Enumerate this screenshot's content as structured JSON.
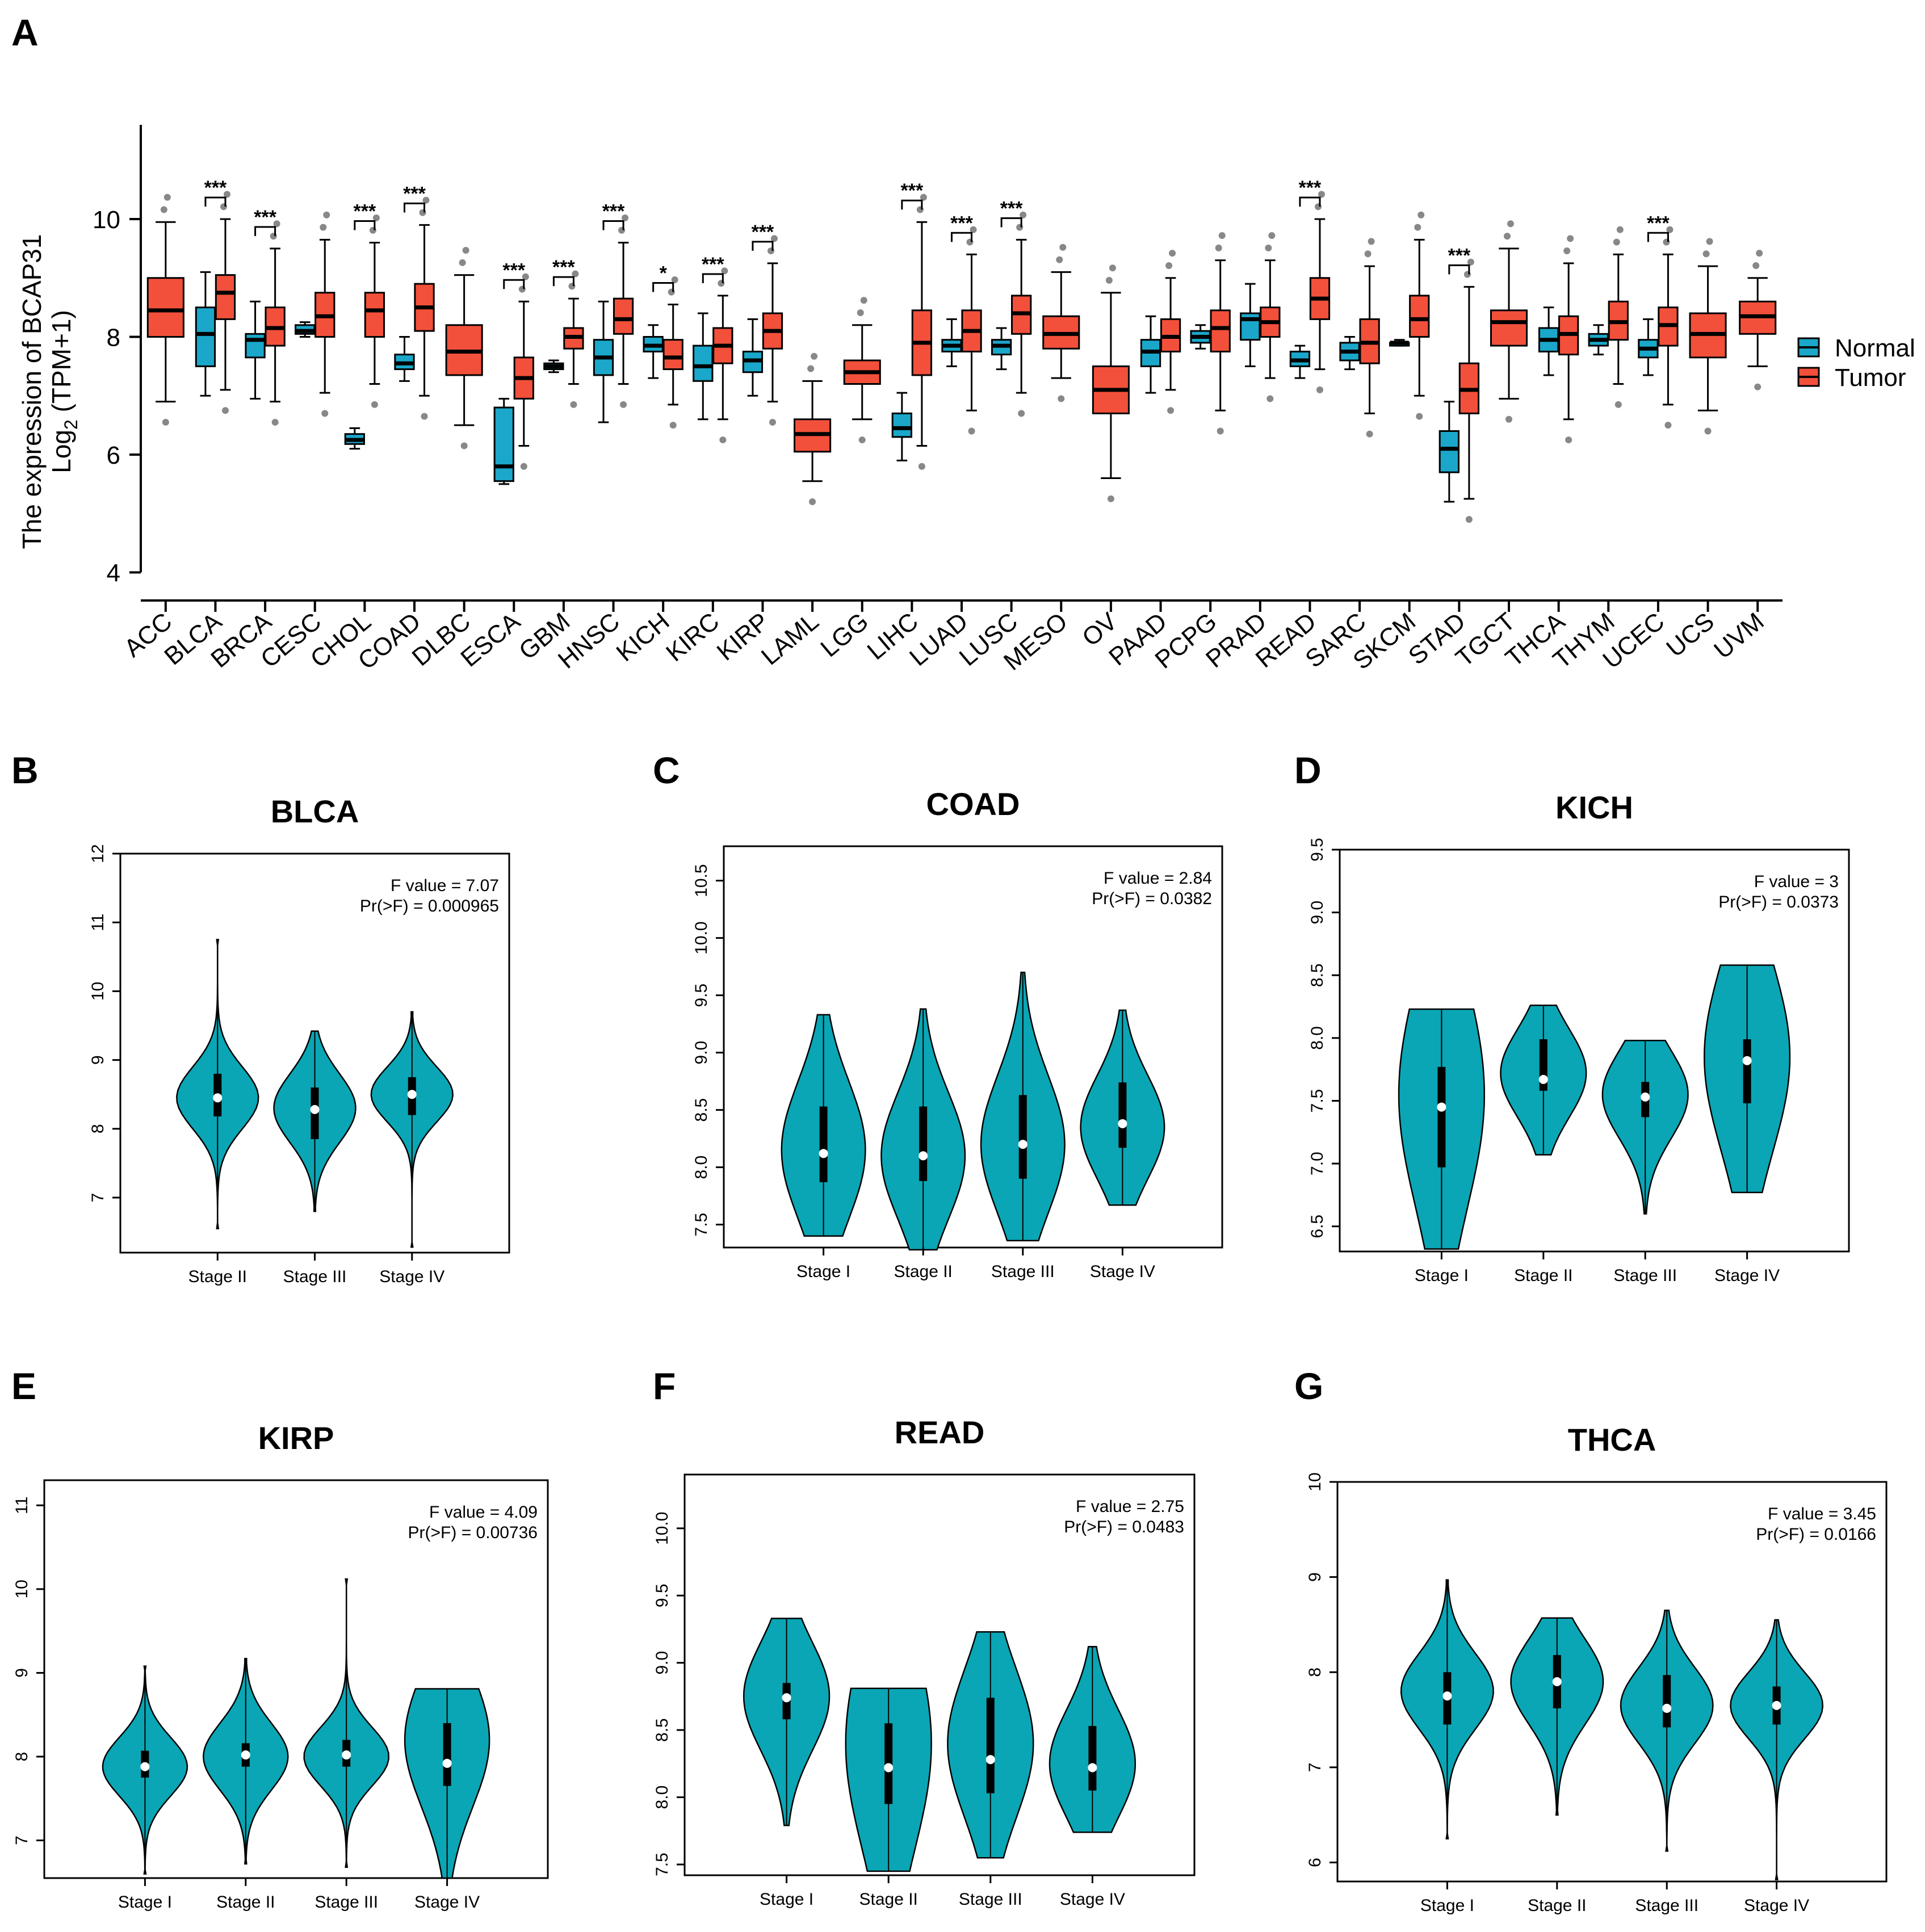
{
  "colors": {
    "normal": "#1aa7c9",
    "tumor": "#f2503a",
    "violin": "#0aa6b5"
  },
  "panel_letters": [
    "A",
    "B",
    "C",
    "D",
    "E",
    "F",
    "G"
  ],
  "chart_data": [
    {
      "panel": "A",
      "type": "box",
      "ylabel_line1": "The expression of BCAP31",
      "ylabel_line2_main": "Log",
      "ylabel_line2_sub": "2",
      "ylabel_line2_rest": " (TPM+1)",
      "ylim": [
        3.6,
        11.6
      ],
      "yticks": [
        4,
        6,
        8,
        10
      ],
      "legend": [
        {
          "name": "Normal",
          "key": "normal"
        },
        {
          "name": "Tumor",
          "key": "tumor"
        }
      ],
      "legend_position": "right",
      "categories": [
        {
          "name": "ACC",
          "tumor": [
            6.9,
            8.0,
            8.45,
            9.0,
            9.95
          ]
        },
        {
          "name": "BLCA",
          "normal": [
            7.0,
            7.5,
            8.05,
            8.5,
            9.1
          ],
          "tumor": [
            7.1,
            8.3,
            8.75,
            9.05,
            10.0
          ],
          "sig": "***"
        },
        {
          "name": "BRCA",
          "normal": [
            6.95,
            7.65,
            7.95,
            8.05,
            8.6
          ],
          "tumor": [
            6.9,
            7.85,
            8.15,
            8.5,
            9.5
          ],
          "sig": "***"
        },
        {
          "name": "CESC",
          "normal": [
            8.0,
            8.05,
            8.1,
            8.2,
            8.25
          ],
          "tumor": [
            7.05,
            8.0,
            8.35,
            8.75,
            9.65
          ]
        },
        {
          "name": "CHOL",
          "normal": [
            6.1,
            6.18,
            6.25,
            6.35,
            6.45
          ],
          "tumor": [
            7.2,
            8.0,
            8.45,
            8.75,
            9.6
          ],
          "sig": "***"
        },
        {
          "name": "COAD",
          "normal": [
            7.25,
            7.45,
            7.55,
            7.7,
            8.0
          ],
          "tumor": [
            7.0,
            8.1,
            8.5,
            8.9,
            9.9
          ],
          "sig": "***"
        },
        {
          "name": "DLBC",
          "tumor": [
            6.5,
            7.35,
            7.75,
            8.2,
            9.05
          ]
        },
        {
          "name": "ESCA",
          "normal": [
            5.5,
            5.55,
            5.8,
            6.8,
            6.95
          ],
          "tumor": [
            6.15,
            6.95,
            7.3,
            7.65,
            8.6
          ],
          "sig": "***"
        },
        {
          "name": "GBM",
          "normal": [
            7.4,
            7.45,
            7.5,
            7.55,
            7.6
          ],
          "tumor": [
            7.2,
            7.8,
            8.0,
            8.15,
            8.65
          ],
          "sig": "***"
        },
        {
          "name": "HNSC",
          "normal": [
            6.55,
            7.35,
            7.65,
            7.95,
            8.6
          ],
          "tumor": [
            7.2,
            8.05,
            8.3,
            8.65,
            9.6
          ],
          "sig": "***"
        },
        {
          "name": "KICH",
          "normal": [
            7.3,
            7.75,
            7.85,
            8.0,
            8.2
          ],
          "tumor": [
            6.85,
            7.45,
            7.65,
            7.95,
            8.55
          ],
          "sig": "*"
        },
        {
          "name": "KIRC",
          "normal": [
            6.6,
            7.25,
            7.5,
            7.85,
            8.4
          ],
          "tumor": [
            6.6,
            7.55,
            7.85,
            8.15,
            8.7
          ],
          "sig": "***"
        },
        {
          "name": "KIRP",
          "normal": [
            7.0,
            7.4,
            7.6,
            7.75,
            8.3
          ],
          "tumor": [
            6.9,
            7.8,
            8.1,
            8.4,
            9.25
          ],
          "sig": "***"
        },
        {
          "name": "LAML",
          "tumor": [
            5.55,
            6.05,
            6.35,
            6.6,
            7.25
          ]
        },
        {
          "name": "LGG",
          "tumor": [
            6.6,
            7.2,
            7.4,
            7.6,
            8.2
          ]
        },
        {
          "name": "LIHC",
          "normal": [
            5.9,
            6.3,
            6.45,
            6.7,
            7.05
          ],
          "tumor": [
            6.15,
            7.35,
            7.9,
            8.45,
            9.95
          ],
          "sig": "***"
        },
        {
          "name": "LUAD",
          "normal": [
            7.5,
            7.75,
            7.85,
            7.95,
            8.3
          ],
          "tumor": [
            6.75,
            7.75,
            8.1,
            8.45,
            9.4
          ],
          "sig": "***"
        },
        {
          "name": "LUSC",
          "normal": [
            7.45,
            7.7,
            7.85,
            7.95,
            8.15
          ],
          "tumor": [
            7.05,
            8.05,
            8.4,
            8.7,
            9.65
          ],
          "sig": "***"
        },
        {
          "name": "MESO",
          "tumor": [
            7.3,
            7.8,
            8.05,
            8.35,
            9.1
          ]
        },
        {
          "name": "OV",
          "tumor": [
            5.6,
            6.7,
            7.1,
            7.5,
            8.75
          ]
        },
        {
          "name": "PAAD",
          "normal": [
            7.05,
            7.5,
            7.75,
            7.95,
            8.35
          ],
          "tumor": [
            7.1,
            7.75,
            8.0,
            8.3,
            9.0
          ]
        },
        {
          "name": "PCPG",
          "normal": [
            7.8,
            7.9,
            8.0,
            8.1,
            8.2
          ],
          "tumor": [
            6.75,
            7.75,
            8.15,
            8.45,
            9.3
          ]
        },
        {
          "name": "PRAD",
          "normal": [
            7.5,
            7.95,
            8.3,
            8.4,
            8.9
          ],
          "tumor": [
            7.3,
            8.0,
            8.25,
            8.5,
            9.3
          ]
        },
        {
          "name": "READ",
          "normal": [
            7.3,
            7.5,
            7.6,
            7.75,
            7.85
          ],
          "tumor": [
            7.45,
            8.3,
            8.65,
            9.0,
            10.0
          ],
          "sig": "***"
        },
        {
          "name": "SARC",
          "normal": [
            7.45,
            7.6,
            7.75,
            7.9,
            8.0
          ],
          "tumor": [
            6.7,
            7.55,
            7.9,
            8.3,
            9.2
          ]
        },
        {
          "name": "SKCM",
          "normal": [
            7.85,
            7.85,
            7.9,
            7.9,
            7.95
          ],
          "tumor": [
            7.0,
            8.0,
            8.3,
            8.7,
            9.65
          ]
        },
        {
          "name": "STAD",
          "normal": [
            5.2,
            5.7,
            6.1,
            6.4,
            6.9
          ],
          "tumor": [
            5.25,
            6.7,
            7.1,
            7.55,
            8.85
          ],
          "sig": "***"
        },
        {
          "name": "TGCT",
          "tumor": [
            6.95,
            7.85,
            8.25,
            8.45,
            9.5
          ]
        },
        {
          "name": "THCA",
          "normal": [
            7.35,
            7.75,
            7.95,
            8.15,
            8.5
          ],
          "tumor": [
            6.6,
            7.7,
            8.05,
            8.35,
            9.25
          ]
        },
        {
          "name": "THYM",
          "normal": [
            7.7,
            7.85,
            7.95,
            8.05,
            8.2
          ],
          "tumor": [
            7.2,
            7.95,
            8.25,
            8.6,
            9.4
          ]
        },
        {
          "name": "UCEC",
          "normal": [
            7.35,
            7.65,
            7.8,
            7.95,
            8.3
          ],
          "tumor": [
            6.85,
            7.85,
            8.2,
            8.5,
            9.4
          ],
          "sig": "***"
        },
        {
          "name": "UCS",
          "tumor": [
            6.75,
            7.65,
            8.05,
            8.4,
            9.2
          ]
        },
        {
          "name": "UVM",
          "tumor": [
            7.5,
            8.05,
            8.35,
            8.6,
            9.0
          ]
        }
      ]
    },
    {
      "panel": "B",
      "type": "violin",
      "title": "BLCA",
      "ylim": [
        6.2,
        12.0
      ],
      "yticks": [
        "7",
        "8",
        "9",
        "10",
        "11",
        "12"
      ],
      "annot1": "F value = 7.07",
      "annot2": "Pr(>F) = 0.000965",
      "groups": [
        {
          "name": "Stage II",
          "min": 6.55,
          "max": 10.75,
          "q1": 8.18,
          "median": 8.45,
          "q3": 8.8,
          "mode": 8.45,
          "spread": 0.45
        },
        {
          "name": "Stage III",
          "min": 6.8,
          "max": 9.42,
          "q1": 7.85,
          "median": 8.28,
          "q3": 8.6,
          "mode": 8.3,
          "spread": 0.5
        },
        {
          "name": "Stage IV",
          "min": 6.28,
          "max": 9.7,
          "q1": 8.2,
          "median": 8.5,
          "q3": 8.75,
          "mode": 8.5,
          "spread": 0.4
        }
      ]
    },
    {
      "panel": "C",
      "type": "violin",
      "title": "COAD",
      "ylim": [
        7.3,
        10.8
      ],
      "yticks": [
        "7.5",
        "8.0",
        "8.5",
        "9.0",
        "9.5",
        "10.0",
        "10.5"
      ],
      "annot1": "F value = 2.84",
      "annot2": "Pr(>F) = 0.0382",
      "groups": [
        {
          "name": "Stage I",
          "min": 7.4,
          "max": 9.33,
          "q1": 7.87,
          "median": 8.12,
          "q3": 8.53,
          "mode": 8.15,
          "spread": 0.6
        },
        {
          "name": "Stage II",
          "min": 7.28,
          "max": 9.38,
          "q1": 7.88,
          "median": 8.1,
          "q3": 8.53,
          "mode": 8.1,
          "spread": 0.55
        },
        {
          "name": "Stage III",
          "min": 7.36,
          "max": 9.7,
          "q1": 7.9,
          "median": 8.2,
          "q3": 8.63,
          "mode": 8.2,
          "spread": 0.6
        },
        {
          "name": "Stage IV",
          "min": 7.67,
          "max": 9.37,
          "q1": 8.17,
          "median": 8.38,
          "q3": 8.74,
          "mode": 8.35,
          "spread": 0.45
        }
      ]
    },
    {
      "panel": "D",
      "type": "violin",
      "title": "KICH",
      "ylim": [
        6.3,
        9.5
      ],
      "yticks": [
        "6.5",
        "7.0",
        "7.5",
        "8.0",
        "8.5",
        "9.0",
        "9.5"
      ],
      "annot1": "F value = 3",
      "annot2": "Pr(>F) = 0.0373",
      "groups": [
        {
          "name": "Stage I",
          "min": 6.32,
          "max": 8.23,
          "q1": 6.97,
          "median": 7.45,
          "q3": 7.77,
          "mode": 7.55,
          "spread": 0.9
        },
        {
          "name": "Stage II",
          "min": 7.07,
          "max": 8.26,
          "q1": 7.58,
          "median": 7.67,
          "q3": 7.99,
          "mode": 7.72,
          "spread": 0.35
        },
        {
          "name": "Stage III",
          "min": 6.6,
          "max": 7.98,
          "q1": 7.37,
          "median": 7.53,
          "q3": 7.65,
          "mode": 7.55,
          "spread": 0.35
        },
        {
          "name": "Stage IV",
          "min": 6.77,
          "max": 8.58,
          "q1": 7.48,
          "median": 7.82,
          "q3": 7.99,
          "mode": 7.85,
          "spread": 0.75
        }
      ]
    },
    {
      "panel": "E",
      "type": "violin",
      "title": "KIRP",
      "ylim": [
        6.55,
        11.3
      ],
      "yticks": [
        "7",
        "8",
        "9",
        "10",
        "11"
      ],
      "annot1": "F value = 4.09",
      "annot2": "Pr(>F) = 0.00736",
      "groups": [
        {
          "name": "Stage I",
          "min": 6.6,
          "max": 9.08,
          "q1": 7.75,
          "median": 7.88,
          "q3": 8.07,
          "mode": 7.88,
          "spread": 0.35
        },
        {
          "name": "Stage II",
          "min": 6.72,
          "max": 9.17,
          "q1": 7.88,
          "median": 8.02,
          "q3": 8.16,
          "mode": 8.0,
          "spread": 0.4
        },
        {
          "name": "Stage III",
          "min": 6.68,
          "max": 10.12,
          "q1": 7.88,
          "median": 8.02,
          "q3": 8.2,
          "mode": 8.0,
          "spread": 0.35
        },
        {
          "name": "Stage IV",
          "min": 6.55,
          "max": 8.81,
          "q1": 7.65,
          "median": 7.92,
          "q3": 8.4,
          "mode": 8.2,
          "spread": 0.8
        }
      ]
    },
    {
      "panel": "F",
      "type": "violin",
      "title": "READ",
      "ylim": [
        7.42,
        10.4
      ],
      "yticks": [
        "7.5",
        "8.0",
        "8.5",
        "9.0",
        "9.5",
        "10.0"
      ],
      "annot1": "F value = 2.75",
      "annot2": "Pr(>F) = 0.0483",
      "groups": [
        {
          "name": "Stage I",
          "min": 7.79,
          "max": 9.33,
          "q1": 8.58,
          "median": 8.74,
          "q3": 8.85,
          "mode": 8.75,
          "spread": 0.4
        },
        {
          "name": "Stage II",
          "min": 7.45,
          "max": 8.81,
          "q1": 7.95,
          "median": 8.22,
          "q3": 8.55,
          "mode": 8.4,
          "spread": 0.8
        },
        {
          "name": "Stage III",
          "min": 7.55,
          "max": 9.23,
          "q1": 8.03,
          "median": 8.28,
          "q3": 8.74,
          "mode": 8.4,
          "spread": 0.55
        },
        {
          "name": "Stage IV",
          "min": 7.74,
          "max": 9.12,
          "q1": 8.05,
          "median": 8.22,
          "q3": 8.53,
          "mode": 8.25,
          "spread": 0.4
        }
      ]
    },
    {
      "panel": "G",
      "type": "violin",
      "title": "THCA",
      "ylim": [
        5.8,
        10.0
      ],
      "yticks": [
        "6",
        "7",
        "8",
        "9",
        "10"
      ],
      "annot1": "F value = 3.45",
      "annot2": "Pr(>F) = 0.0166",
      "groups": [
        {
          "name": "Stage I",
          "min": 6.25,
          "max": 8.97,
          "q1": 7.45,
          "median": 7.75,
          "q3": 8.0,
          "mode": 7.8,
          "spread": 0.4
        },
        {
          "name": "Stage II",
          "min": 6.5,
          "max": 8.57,
          "q1": 7.62,
          "median": 7.9,
          "q3": 8.18,
          "mode": 7.9,
          "spread": 0.45
        },
        {
          "name": "Stage III",
          "min": 6.12,
          "max": 8.65,
          "q1": 7.42,
          "median": 7.62,
          "q3": 7.97,
          "mode": 7.65,
          "spread": 0.4
        },
        {
          "name": "Stage IV",
          "min": 5.82,
          "max": 8.55,
          "q1": 7.45,
          "median": 7.65,
          "q3": 7.85,
          "mode": 7.65,
          "spread": 0.35
        }
      ]
    }
  ]
}
